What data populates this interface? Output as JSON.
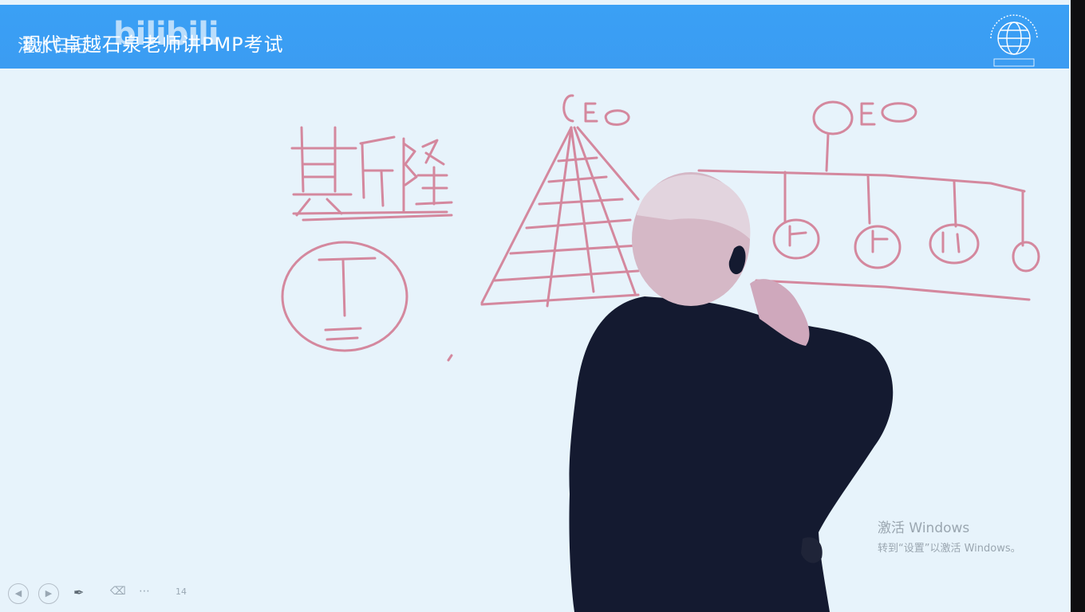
{
  "banner": {
    "title": "现代卓越石泉老师讲PMP考试",
    "channel": "灌水日记",
    "watermark": "bilibili",
    "colors": {
      "background": "#3b9cf2",
      "text": "#ffffff"
    }
  },
  "whiteboard": {
    "background": "#e7f3fb",
    "ink_color": "#d4889e",
    "writing": {
      "left_word": "斯隆",
      "circled_letter": "T",
      "left_label": "CEO",
      "right_label": "CEO"
    }
  },
  "activation": {
    "title": "激活 Windows",
    "subtitle": "转到“设置”以激活 Windows。"
  },
  "controls": {
    "prev_icon": "◀",
    "next_icon": "▶",
    "pen_icon": "✒",
    "eraser_icon": "⌫",
    "menu_icon": "⋯",
    "slide_indicator": "14"
  }
}
